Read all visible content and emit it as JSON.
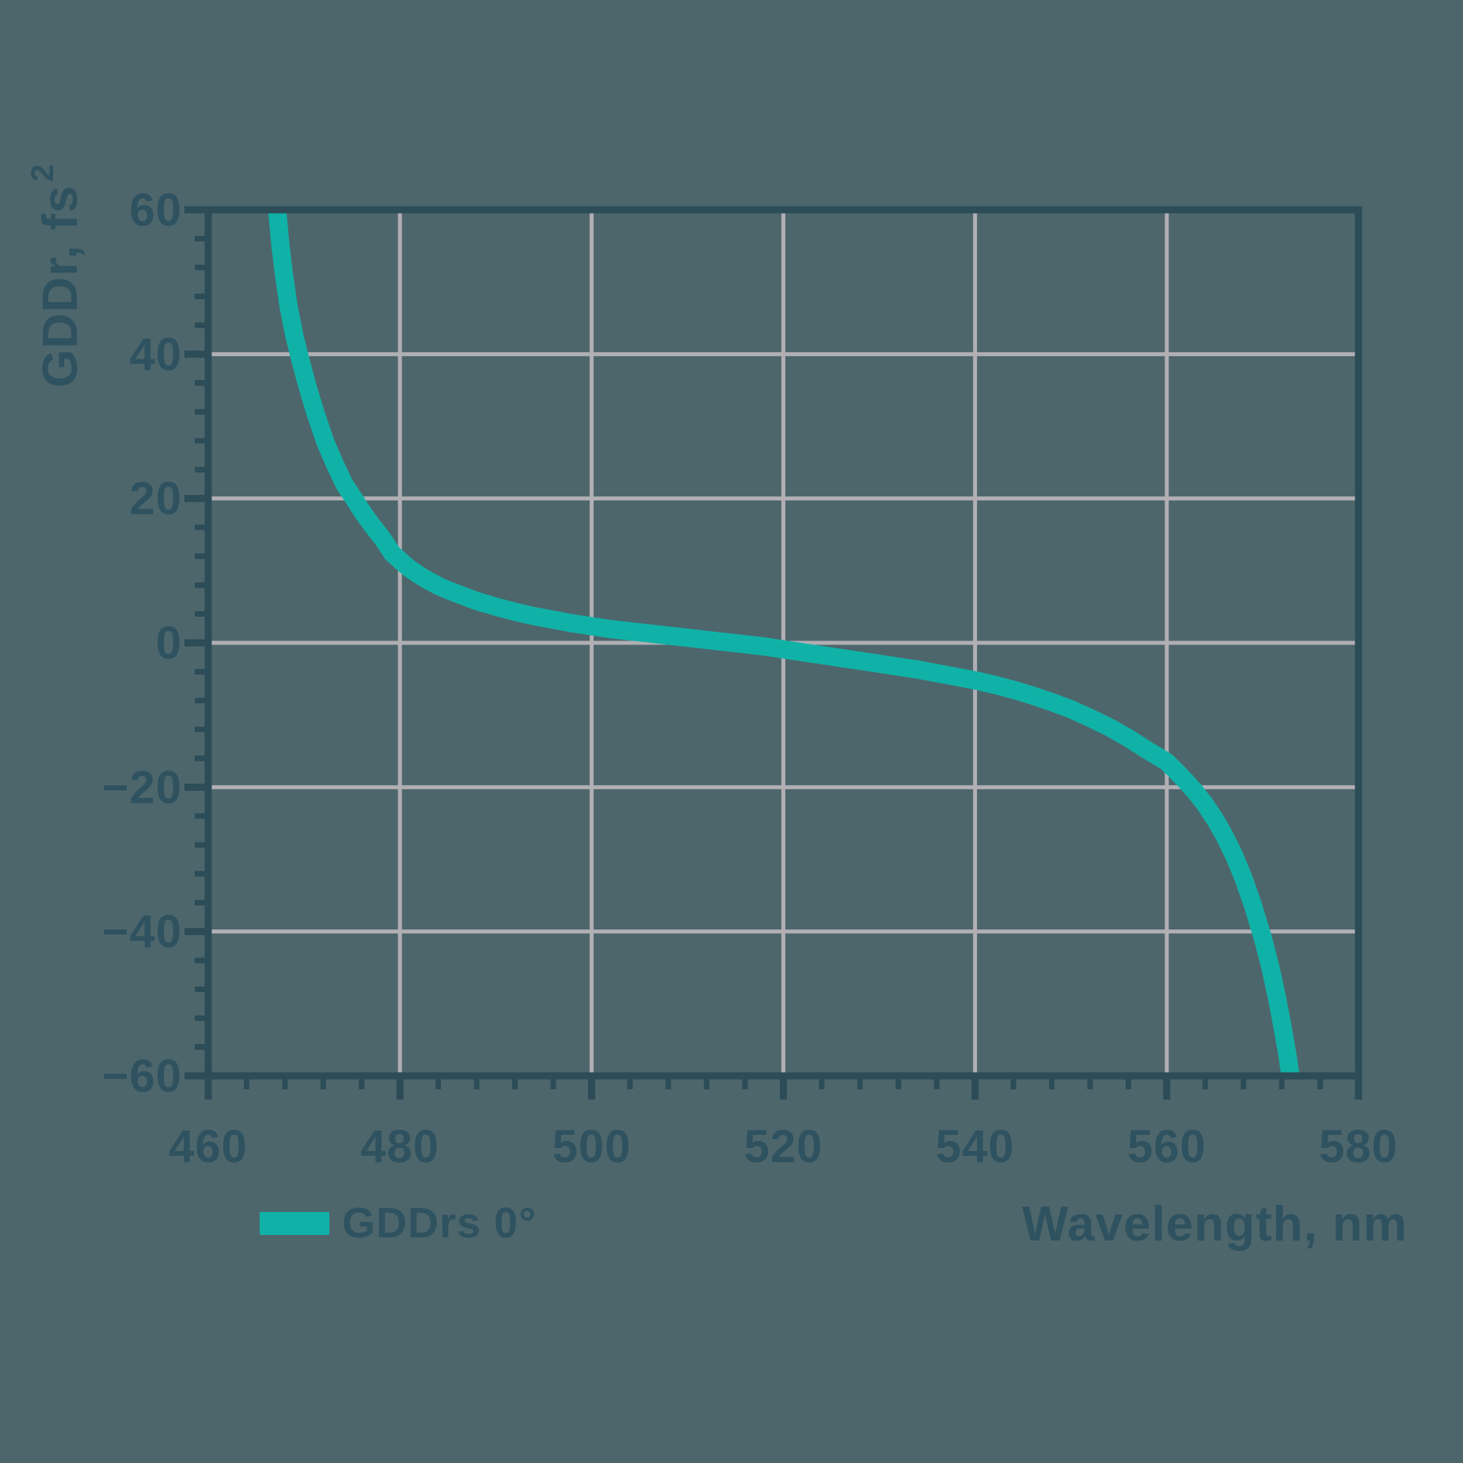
{
  "colors": {
    "background": "#4D666C",
    "axis": "#2C4C58",
    "text": "#2F5260",
    "grid": "#B1AFB4",
    "curve": "#10B2A7"
  },
  "chart_data": {
    "type": "line",
    "title": "",
    "xlabel": "Wavelength, nm",
    "ylabel": "GDDr, fs²",
    "ylabel_base": "GDDr, fs",
    "ylabel_superscript": "2",
    "xlim": [
      460,
      580
    ],
    "ylim": [
      -60,
      60
    ],
    "x_ticks": [
      460,
      480,
      500,
      520,
      540,
      560,
      580
    ],
    "y_ticks": [
      -60,
      -40,
      -20,
      0,
      20,
      40,
      60
    ],
    "x_minor_step": 4,
    "y_minor_step": 4,
    "grid": true,
    "legend_position": "bottom-left",
    "series": [
      {
        "name": "GDDrs 0°",
        "color": "#10B2A7",
        "points": [
          [
            467.2,
            60
          ],
          [
            467.5,
            55.5
          ],
          [
            467.9,
            51
          ],
          [
            468.4,
            46.5
          ],
          [
            469.0,
            42.5
          ],
          [
            469.6,
            39.3
          ],
          [
            470.3,
            35.8
          ],
          [
            471.2,
            31.8
          ],
          [
            472.2,
            27.9
          ],
          [
            473.2,
            24.8
          ],
          [
            474.2,
            22.0
          ],
          [
            475.2,
            20.0
          ],
          [
            476.2,
            17.9
          ],
          [
            477.2,
            16.1
          ],
          [
            478.2,
            14.4
          ],
          [
            479.2,
            12.4
          ],
          [
            480.2,
            11.2
          ],
          [
            481,
            10.3
          ],
          [
            482,
            9.4
          ],
          [
            483,
            8.6
          ],
          [
            484,
            7.9
          ],
          [
            485,
            7.3
          ],
          [
            486,
            6.8
          ],
          [
            487,
            6.3
          ],
          [
            488,
            5.8
          ],
          [
            490,
            5.0
          ],
          [
            492,
            4.3
          ],
          [
            494,
            3.7
          ],
          [
            496,
            3.2
          ],
          [
            498,
            2.7
          ],
          [
            500,
            2.3
          ],
          [
            502,
            1.9
          ],
          [
            504,
            1.6
          ],
          [
            506,
            1.3
          ],
          [
            508,
            1.0
          ],
          [
            510,
            0.7
          ],
          [
            512,
            0.4
          ],
          [
            514,
            0.1
          ],
          [
            516,
            -0.2
          ],
          [
            518,
            -0.5
          ],
          [
            520,
            -0.9
          ],
          [
            522,
            -1.3
          ],
          [
            524,
            -1.7
          ],
          [
            526,
            -2.1
          ],
          [
            528,
            -2.5
          ],
          [
            530,
            -2.9
          ],
          [
            532,
            -3.3
          ],
          [
            534,
            -3.7
          ],
          [
            536,
            -4.2
          ],
          [
            538,
            -4.7
          ],
          [
            540,
            -5.2
          ],
          [
            542,
            -5.8
          ],
          [
            544,
            -6.5
          ],
          [
            546,
            -7.3
          ],
          [
            548,
            -8.2
          ],
          [
            550,
            -9.2
          ],
          [
            552,
            -10.4
          ],
          [
            554,
            -11.7
          ],
          [
            556,
            -13.2
          ],
          [
            558,
            -14.9
          ],
          [
            560,
            -16.5
          ],
          [
            561,
            -17.8
          ],
          [
            562,
            -19.2
          ],
          [
            563,
            -20.7
          ],
          [
            564,
            -22.4
          ],
          [
            565,
            -24.4
          ],
          [
            566,
            -26.7
          ],
          [
            567,
            -29.4
          ],
          [
            568,
            -32.6
          ],
          [
            569,
            -36.4
          ],
          [
            570,
            -40.8
          ],
          [
            570.8,
            -44.9
          ],
          [
            571.5,
            -49.2
          ],
          [
            572.1,
            -53.4
          ],
          [
            572.6,
            -57.2
          ],
          [
            572.9,
            -60
          ]
        ]
      }
    ]
  }
}
